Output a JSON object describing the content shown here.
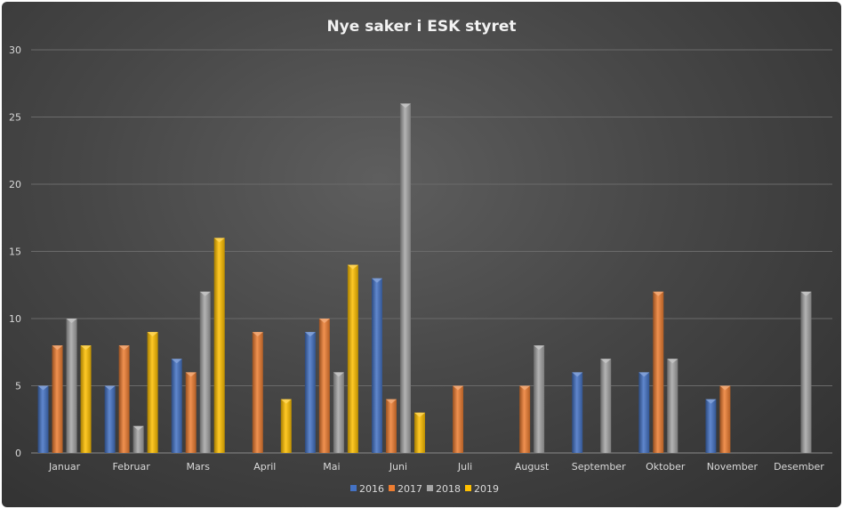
{
  "chart_data": {
    "type": "bar",
    "title": "Nye saker  i ESK styret",
    "xlabel": "",
    "ylabel": "",
    "categories": [
      "Januar",
      "Februar",
      "Mars",
      "April",
      "Mai",
      "Juni",
      "Juli",
      "August",
      "September",
      "Oktober",
      "November",
      "Desember"
    ],
    "series": [
      {
        "name": "2016",
        "color": "#4472c4",
        "values": [
          5,
          5,
          7,
          null,
          9,
          13,
          null,
          null,
          6,
          6,
          4,
          null
        ]
      },
      {
        "name": "2017",
        "color": "#ed7d31",
        "values": [
          8,
          8,
          6,
          9,
          10,
          4,
          5,
          5,
          null,
          12,
          5,
          null
        ]
      },
      {
        "name": "2018",
        "color": "#a5a5a5",
        "values": [
          10,
          2,
          12,
          null,
          6,
          26,
          null,
          8,
          7,
          7,
          null,
          12
        ]
      },
      {
        "name": "2019",
        "color": "#ffc000",
        "values": [
          8,
          9,
          16,
          4,
          14,
          3,
          null,
          null,
          null,
          null,
          null,
          null
        ]
      }
    ],
    "ylim": [
      0,
      30
    ],
    "yticks": [
      0,
      5,
      10,
      15,
      20,
      25,
      30
    ],
    "grid": true,
    "legend": "bottom-center"
  }
}
